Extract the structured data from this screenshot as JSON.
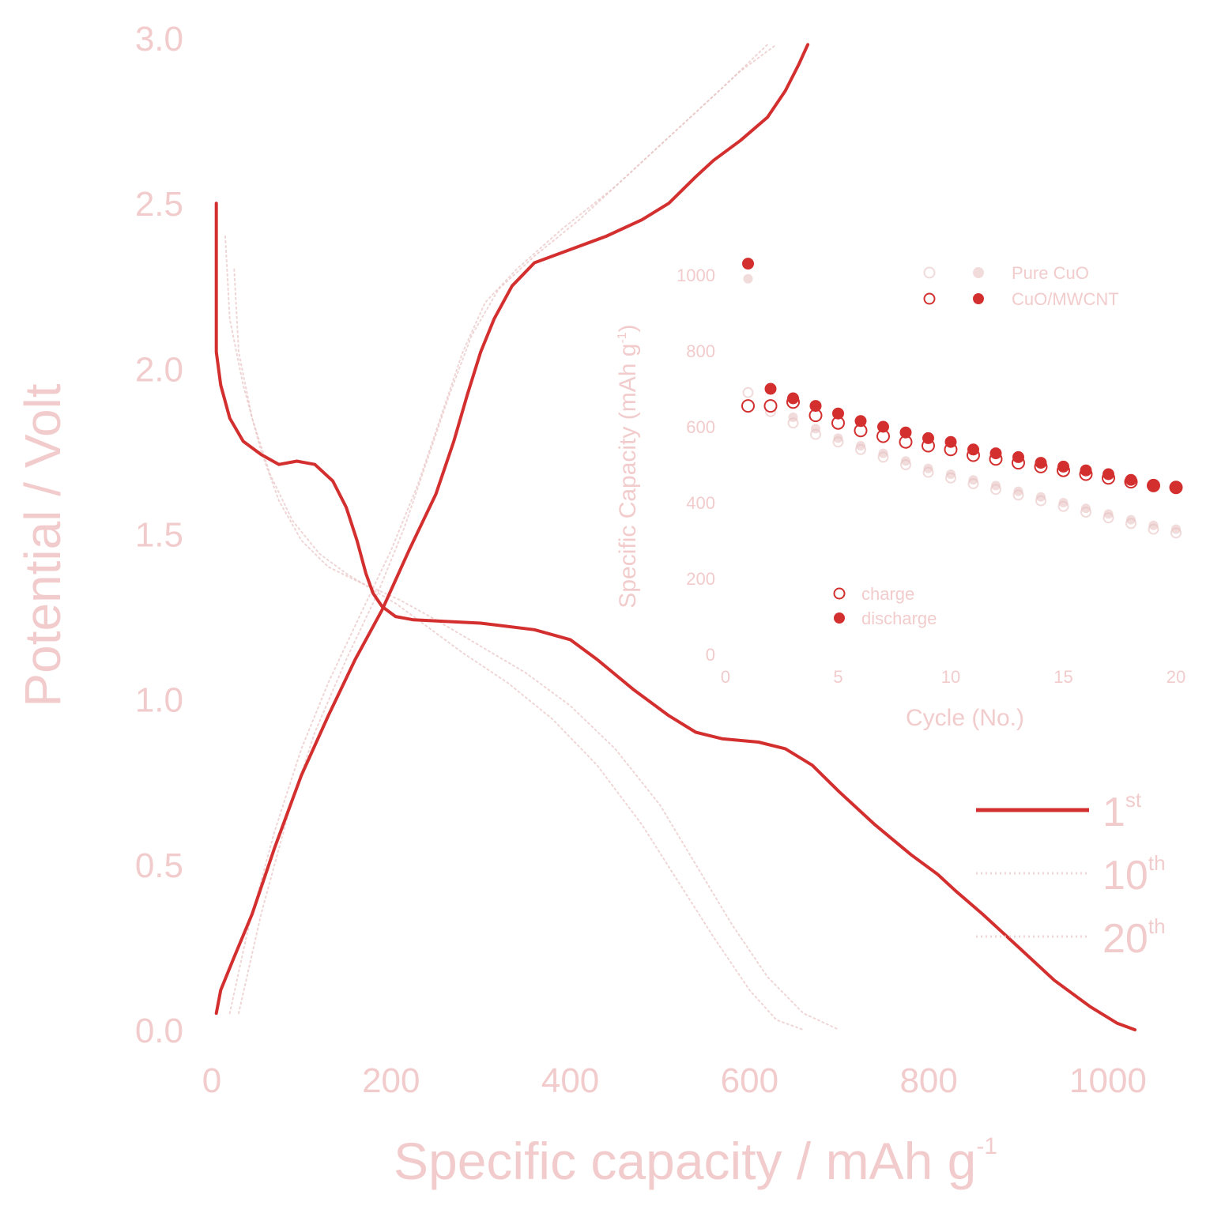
{
  "colors": {
    "main": "#d32f2f",
    "faint": "#e8c3c3",
    "text": "#f2cccc"
  },
  "chart_data": [
    {
      "type": "line",
      "xlabel": "Specific capacity / mAh g",
      "xlabel_sup": "-1",
      "ylabel": "Potential / Volt",
      "xlim": [
        0,
        1060
      ],
      "ylim": [
        0.0,
        3.0
      ],
      "x_ticks": [
        "0",
        "200",
        "400",
        "600",
        "800",
        "1000"
      ],
      "y_ticks": [
        "0.0",
        "0.5",
        "1.0",
        "1.5",
        "2.0",
        "2.5",
        "3.0"
      ],
      "legend": {
        "position": "right",
        "entries": [
          {
            "base": "1",
            "sup": "st"
          },
          {
            "base": "10",
            "sup": "th"
          },
          {
            "base": "20",
            "sup": "th"
          }
        ]
      },
      "series": [
        {
          "name": "1st",
          "discharge": [
            [
              5,
              2.5
            ],
            [
              5,
              2.05
            ],
            [
              10,
              1.95
            ],
            [
              20,
              1.85
            ],
            [
              35,
              1.78
            ],
            [
              55,
              1.74
            ],
            [
              75,
              1.71
            ],
            [
              95,
              1.72
            ],
            [
              115,
              1.71
            ],
            [
              135,
              1.66
            ],
            [
              150,
              1.58
            ],
            [
              162,
              1.48
            ],
            [
              172,
              1.38
            ],
            [
              180,
              1.32
            ],
            [
              190,
              1.28
            ],
            [
              205,
              1.25
            ],
            [
              225,
              1.24
            ],
            [
              300,
              1.23
            ],
            [
              360,
              1.21
            ],
            [
              400,
              1.18
            ],
            [
              430,
              1.12
            ],
            [
              470,
              1.03
            ],
            [
              510,
              0.95
            ],
            [
              540,
              0.9
            ],
            [
              570,
              0.88
            ],
            [
              610,
              0.87
            ],
            [
              640,
              0.85
            ],
            [
              670,
              0.8
            ],
            [
              700,
              0.72
            ],
            [
              740,
              0.62
            ],
            [
              780,
              0.53
            ],
            [
              810,
              0.47
            ],
            [
              830,
              0.42
            ],
            [
              860,
              0.35
            ],
            [
              900,
              0.25
            ],
            [
              940,
              0.15
            ],
            [
              980,
              0.07
            ],
            [
              1010,
              0.02
            ],
            [
              1030,
              0.0
            ]
          ],
          "charge": [
            [
              5,
              0.05
            ],
            [
              10,
              0.12
            ],
            [
              25,
              0.22
            ],
            [
              45,
              0.35
            ],
            [
              70,
              0.55
            ],
            [
              100,
              0.77
            ],
            [
              130,
              0.95
            ],
            [
              160,
              1.12
            ],
            [
              190,
              1.27
            ],
            [
              220,
              1.45
            ],
            [
              250,
              1.62
            ],
            [
              270,
              1.78
            ],
            [
              285,
              1.92
            ],
            [
              300,
              2.05
            ],
            [
              315,
              2.15
            ],
            [
              335,
              2.25
            ],
            [
              360,
              2.32
            ],
            [
              400,
              2.36
            ],
            [
              440,
              2.4
            ],
            [
              480,
              2.45
            ],
            [
              510,
              2.5
            ],
            [
              540,
              2.58
            ],
            [
              560,
              2.63
            ],
            [
              590,
              2.69
            ],
            [
              620,
              2.76
            ],
            [
              640,
              2.84
            ],
            [
              655,
              2.92
            ],
            [
              665,
              2.98
            ]
          ]
        },
        {
          "name": "10th",
          "discharge": [
            [
              15,
              2.4
            ],
            [
              20,
              2.15
            ],
            [
              35,
              1.95
            ],
            [
              55,
              1.75
            ],
            [
              75,
              1.6
            ],
            [
              100,
              1.48
            ],
            [
              130,
              1.4
            ],
            [
              160,
              1.36
            ],
            [
              185,
              1.33
            ],
            [
              210,
              1.3
            ],
            [
              250,
              1.24
            ],
            [
              300,
              1.16
            ],
            [
              350,
              1.08
            ],
            [
              400,
              0.98
            ],
            [
              450,
              0.85
            ],
            [
              500,
              0.68
            ],
            [
              540,
              0.5
            ],
            [
              580,
              0.32
            ],
            [
              620,
              0.16
            ],
            [
              660,
              0.05
            ],
            [
              700,
              0.0
            ]
          ],
          "charge": [
            [
              20,
              0.05
            ],
            [
              40,
              0.3
            ],
            [
              70,
              0.6
            ],
            [
              100,
              0.85
            ],
            [
              130,
              1.05
            ],
            [
              170,
              1.28
            ],
            [
              200,
              1.45
            ],
            [
              230,
              1.65
            ],
            [
              255,
              1.85
            ],
            [
              280,
              2.05
            ],
            [
              305,
              2.2
            ],
            [
              340,
              2.3
            ],
            [
              390,
              2.42
            ],
            [
              450,
              2.55
            ],
            [
              510,
              2.7
            ],
            [
              570,
              2.85
            ],
            [
              620,
              2.98
            ]
          ]
        },
        {
          "name": "20th",
          "discharge": [
            [
              25,
              2.3
            ],
            [
              30,
              2.05
            ],
            [
              45,
              1.85
            ],
            [
              65,
              1.68
            ],
            [
              90,
              1.54
            ],
            [
              120,
              1.44
            ],
            [
              150,
              1.38
            ],
            [
              180,
              1.33
            ],
            [
              205,
              1.29
            ],
            [
              240,
              1.22
            ],
            [
              280,
              1.14
            ],
            [
              330,
              1.05
            ],
            [
              380,
              0.94
            ],
            [
              430,
              0.8
            ],
            [
              480,
              0.62
            ],
            [
              520,
              0.45
            ],
            [
              560,
              0.28
            ],
            [
              600,
              0.12
            ],
            [
              630,
              0.03
            ],
            [
              660,
              0.0
            ]
          ],
          "charge": [
            [
              30,
              0.05
            ],
            [
              55,
              0.35
            ],
            [
              85,
              0.65
            ],
            [
              115,
              0.9
            ],
            [
              150,
              1.12
            ],
            [
              185,
              1.32
            ],
            [
              215,
              1.52
            ],
            [
              240,
              1.72
            ],
            [
              265,
              1.92
            ],
            [
              290,
              2.1
            ],
            [
              320,
              2.24
            ],
            [
              360,
              2.34
            ],
            [
              410,
              2.45
            ],
            [
              470,
              2.6
            ],
            [
              530,
              2.75
            ],
            [
              590,
              2.9
            ],
            [
              630,
              2.98
            ]
          ]
        }
      ]
    },
    {
      "type": "scatter",
      "xlabel": "Cycle (No.)",
      "ylabel": "Specific Capacity (mAh g",
      "ylabel_end": ")",
      "xlim": [
        0,
        20
      ],
      "ylim": [
        0,
        1100
      ],
      "x_ticks": [
        "0",
        "5",
        "10",
        "15",
        "20"
      ],
      "y_ticks": [
        "0",
        "200",
        "400",
        "600",
        "800",
        "1000"
      ],
      "legend_top": {
        "position": "top-right",
        "entries": [
          {
            "name": "Pure CuO"
          },
          {
            "name": "CuO/MWCNT"
          }
        ]
      },
      "legend_bottom": {
        "position": "bottom-left",
        "entries": [
          {
            "name": "charge"
          },
          {
            "name": "discharge"
          }
        ]
      },
      "series": [
        {
          "name": "CuO/MWCNT charge",
          "marker": "open",
          "x": [
            1,
            2,
            3,
            4,
            5,
            6,
            7,
            8,
            9,
            10,
            11,
            12,
            13,
            14,
            15,
            16,
            17,
            18,
            19,
            20
          ],
          "y": [
            655,
            655,
            665,
            630,
            610,
            590,
            575,
            560,
            550,
            540,
            525,
            515,
            505,
            495,
            485,
            475,
            465,
            455,
            445,
            440
          ]
        },
        {
          "name": "CuO/MWCNT discharge",
          "marker": "filled",
          "x": [
            1,
            2,
            3,
            4,
            5,
            6,
            7,
            8,
            9,
            10,
            11,
            12,
            13,
            14,
            15,
            16,
            17,
            18,
            19,
            20
          ],
          "y": [
            1030,
            700,
            675,
            655,
            635,
            615,
            600,
            585,
            570,
            560,
            540,
            530,
            520,
            505,
            495,
            485,
            475,
            460,
            445,
            440
          ]
        },
        {
          "name": "Pure CuO charge",
          "marker": "open",
          "x": [
            1,
            2,
            3,
            4,
            5,
            6,
            7,
            8,
            9,
            10,
            11,
            12,
            13,
            14,
            15,
            16,
            17,
            18,
            19,
            20
          ],
          "y": [
            690,
            640,
            610,
            580,
            560,
            540,
            520,
            500,
            480,
            465,
            450,
            435,
            420,
            405,
            390,
            375,
            360,
            345,
            330,
            320
          ]
        },
        {
          "name": "Pure CuO discharge",
          "marker": "filled",
          "x": [
            1,
            2,
            3,
            4,
            5,
            6,
            7,
            8,
            9,
            10,
            11,
            12,
            13,
            14,
            15,
            16,
            17,
            18,
            19,
            20
          ],
          "y": [
            990,
            660,
            625,
            595,
            570,
            550,
            530,
            510,
            490,
            475,
            460,
            445,
            430,
            415,
            400,
            385,
            370,
            355,
            340,
            330
          ]
        }
      ]
    }
  ]
}
